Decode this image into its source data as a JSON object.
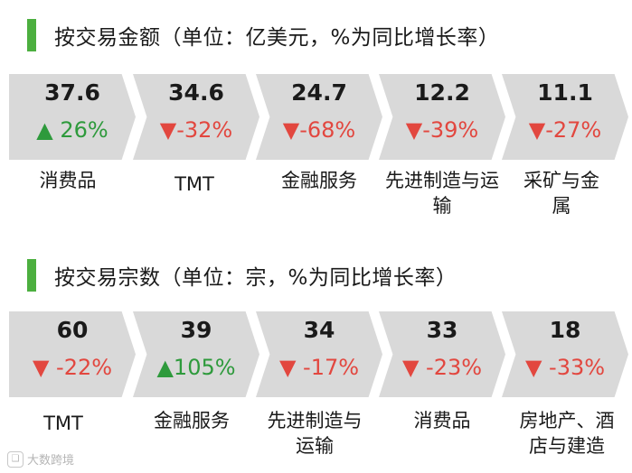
{
  "colors": {
    "accent": "#4caf3f",
    "up": "#2e9a3c",
    "down": "#e2473f",
    "chevron": "#d9d9d9"
  },
  "sections": [
    {
      "title": "按交易金额（单位：亿美元，%为同比增长率）",
      "items": [
        {
          "value": "37.6",
          "arrow": "▲",
          "change": " 26%",
          "direction": "up",
          "label": "消费品"
        },
        {
          "value": "34.6",
          "arrow": "▼",
          "change": "-32%",
          "direction": "down",
          "label": "TMT"
        },
        {
          "value": "24.7",
          "arrow": "▼",
          "change": "-68%",
          "direction": "down",
          "label": "金融服务"
        },
        {
          "value": "12.2",
          "arrow": "▼",
          "change": "-39%",
          "direction": "down",
          "label": "先进制造与运输"
        },
        {
          "value": "11.1",
          "arrow": "▼",
          "change": "-27%",
          "direction": "down",
          "label": "采矿与金属"
        }
      ]
    },
    {
      "title": "按交易宗数（单位：宗，%为同比增长率）",
      "items": [
        {
          "value": "60",
          "arrow": "▼",
          "change": " -22%",
          "direction": "down",
          "label": "TMT"
        },
        {
          "value": "39",
          "arrow": "▲",
          "change": "105%",
          "direction": "up",
          "label": "金融服务"
        },
        {
          "value": "34",
          "arrow": "▼",
          "change": " -17%",
          "direction": "down",
          "label": "先进制造与运输"
        },
        {
          "value": "33",
          "arrow": "▼",
          "change": " -23%",
          "direction": "down",
          "label": "消费品"
        },
        {
          "value": "18",
          "arrow": "▼",
          "change": " -33%",
          "direction": "down",
          "label": "房地产、酒店与建造"
        }
      ]
    }
  ],
  "watermark": {
    "icon": "logo-icon",
    "text": "大数跨境"
  }
}
